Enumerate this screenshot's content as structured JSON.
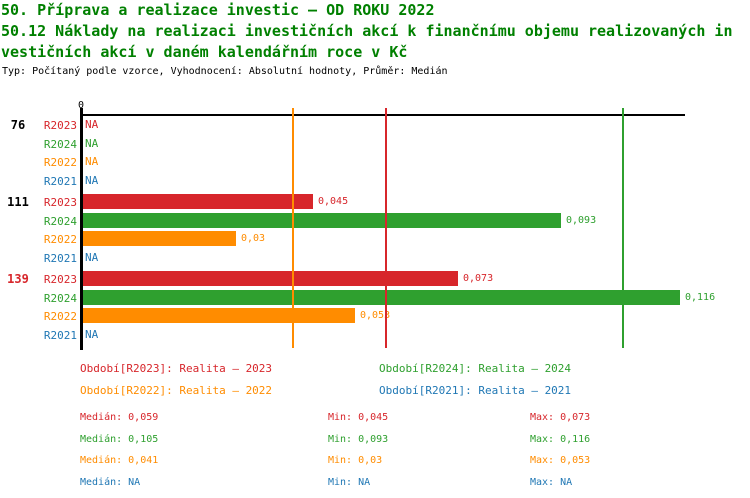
{
  "header": {
    "title_line1": "50. Příprava a realizace investic – OD ROKU 2022",
    "title_line2": "50.12 Náklady na realizaci investičních akcí k finančnímu objemu realizovaných in",
    "title_line3": "vestičních akcí v daném kalendářním roce v Kč",
    "subtitle": "Typ: Počítaný podle vzorce, Vyhodnocení: Absolutní hodnoty, Průměr: Medián"
  },
  "colors": {
    "title_green": "#008000",
    "axis_black": "#000000",
    "series": {
      "R2023": "#d7262b",
      "R2024": "#2fa02f",
      "R2022": "#ff8c00",
      "R2021": "#1f77b4"
    },
    "highlight_group_label": "#d7262b"
  },
  "chart_data": {
    "type": "bar",
    "orientation": "horizontal",
    "title": "50.12 Náklady na realizaci investičních akcí k finančnímu objemu realizovaných investičních akcí v daném kalendářním roce v Kč",
    "xlim": [
      0,
      0.117
    ],
    "grid": false,
    "axis_zero_label": "0",
    "categories": [
      "76",
      "111",
      "139"
    ],
    "series_order": [
      "R2023",
      "R2024",
      "R2022",
      "R2021"
    ],
    "groups": [
      {
        "label": "76",
        "label_color": "#000000",
        "rows": [
          {
            "series": "R2023",
            "value": null,
            "display": "NA"
          },
          {
            "series": "R2024",
            "value": null,
            "display": "NA"
          },
          {
            "series": "R2022",
            "value": null,
            "display": "NA"
          },
          {
            "series": "R2021",
            "value": null,
            "display": "NA"
          }
        ]
      },
      {
        "label": "111",
        "label_color": "#000000",
        "rows": [
          {
            "series": "R2023",
            "value": 0.045,
            "display": "0,045"
          },
          {
            "series": "R2024",
            "value": 0.093,
            "display": "0,093"
          },
          {
            "series": "R2022",
            "value": 0.03,
            "display": "0,03"
          },
          {
            "series": "R2021",
            "value": null,
            "display": "NA"
          }
        ]
      },
      {
        "label": "139",
        "label_color": "#d7262b",
        "rows": [
          {
            "series": "R2023",
            "value": 0.073,
            "display": "0,073"
          },
          {
            "series": "R2024",
            "value": 0.116,
            "display": "0,116"
          },
          {
            "series": "R2022",
            "value": 0.053,
            "display": "0,053"
          },
          {
            "series": "R2021",
            "value": null,
            "display": "NA"
          }
        ]
      }
    ],
    "median_lines": [
      {
        "series": "R2023",
        "value": 0.059
      },
      {
        "series": "R2024",
        "value": 0.105
      },
      {
        "series": "R2022",
        "value": 0.041
      }
    ]
  },
  "legend": {
    "items": [
      {
        "series": "R2023",
        "label": "Období[R2023]: Realita – 2023"
      },
      {
        "series": "R2024",
        "label": "Období[R2024]: Realita – 2024"
      },
      {
        "series": "R2022",
        "label": "Období[R2022]: Realita – 2022"
      },
      {
        "series": "R2021",
        "label": "Období[R2021]: Realita – 2021"
      }
    ]
  },
  "stats": {
    "rows": [
      {
        "series": "R2023",
        "median": "Medián: 0,059",
        "min": "Min: 0,045",
        "max": "Max: 0,073"
      },
      {
        "series": "R2024",
        "median": "Medián: 0,105",
        "min": "Min: 0,093",
        "max": "Max: 0,116"
      },
      {
        "series": "R2022",
        "median": "Medián: 0,041",
        "min": "Min: 0,03",
        "max": "Max: 0,053"
      },
      {
        "series": "R2021",
        "median": "Medián: NA",
        "min": "Min: NA",
        "max": "Max: NA"
      }
    ]
  }
}
